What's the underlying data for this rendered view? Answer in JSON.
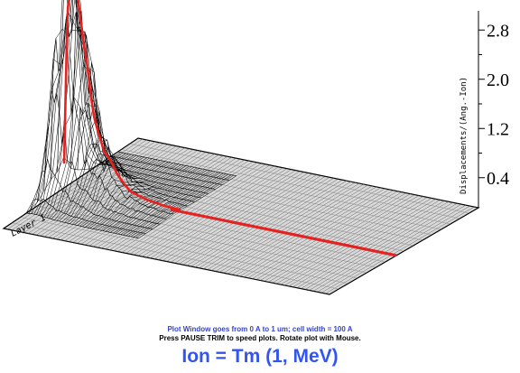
{
  "chart_data": {
    "type": "surface",
    "title": "",
    "axis_label_right": "Displacements/(Ang.-Ion)",
    "z_ticks": [
      "0.4",
      "1.2",
      "2.0",
      "2.8"
    ],
    "z_tick_values": [
      0.4,
      1.2,
      2.0,
      2.8
    ],
    "zlim": [
      0,
      3.2
    ],
    "layer_label": "Layer 1",
    "profile": {
      "name": "",
      "depth_fraction": [
        0.0,
        0.01,
        0.02,
        0.03,
        0.04,
        0.05,
        0.06,
        0.07,
        0.08,
        0.09,
        0.1,
        0.12,
        0.14,
        0.16,
        0.18,
        0.2,
        0.25,
        0.3,
        0.4,
        0.5,
        0.6,
        0.7,
        0.8,
        0.9,
        1.0
      ],
      "values": [
        0.3,
        2.2,
        2.45,
        2.5,
        2.4,
        2.1,
        1.8,
        1.55,
        1.2,
        0.95,
        0.8,
        0.55,
        0.45,
        0.3,
        0.2,
        0.12,
        0.06,
        0.03,
        0.01,
        0.0,
        0.0,
        0.0,
        0.0,
        0.0,
        0.0
      ]
    },
    "grid": true
  },
  "captions": {
    "line1": "Plot Window goes from 0 A to 1 um;  cell width = 100 A",
    "line2": "Press PAUSE TRIM to speed plots.    Rotate plot with Mouse.",
    "ion": "Ion = Tm (1, MeV)"
  },
  "colors": {
    "profile": "#e8201e",
    "grid": "#000000",
    "plane": "#d9d9d9",
    "caption_blue": "#3344cc",
    "ion_blue": "#3355ee"
  }
}
